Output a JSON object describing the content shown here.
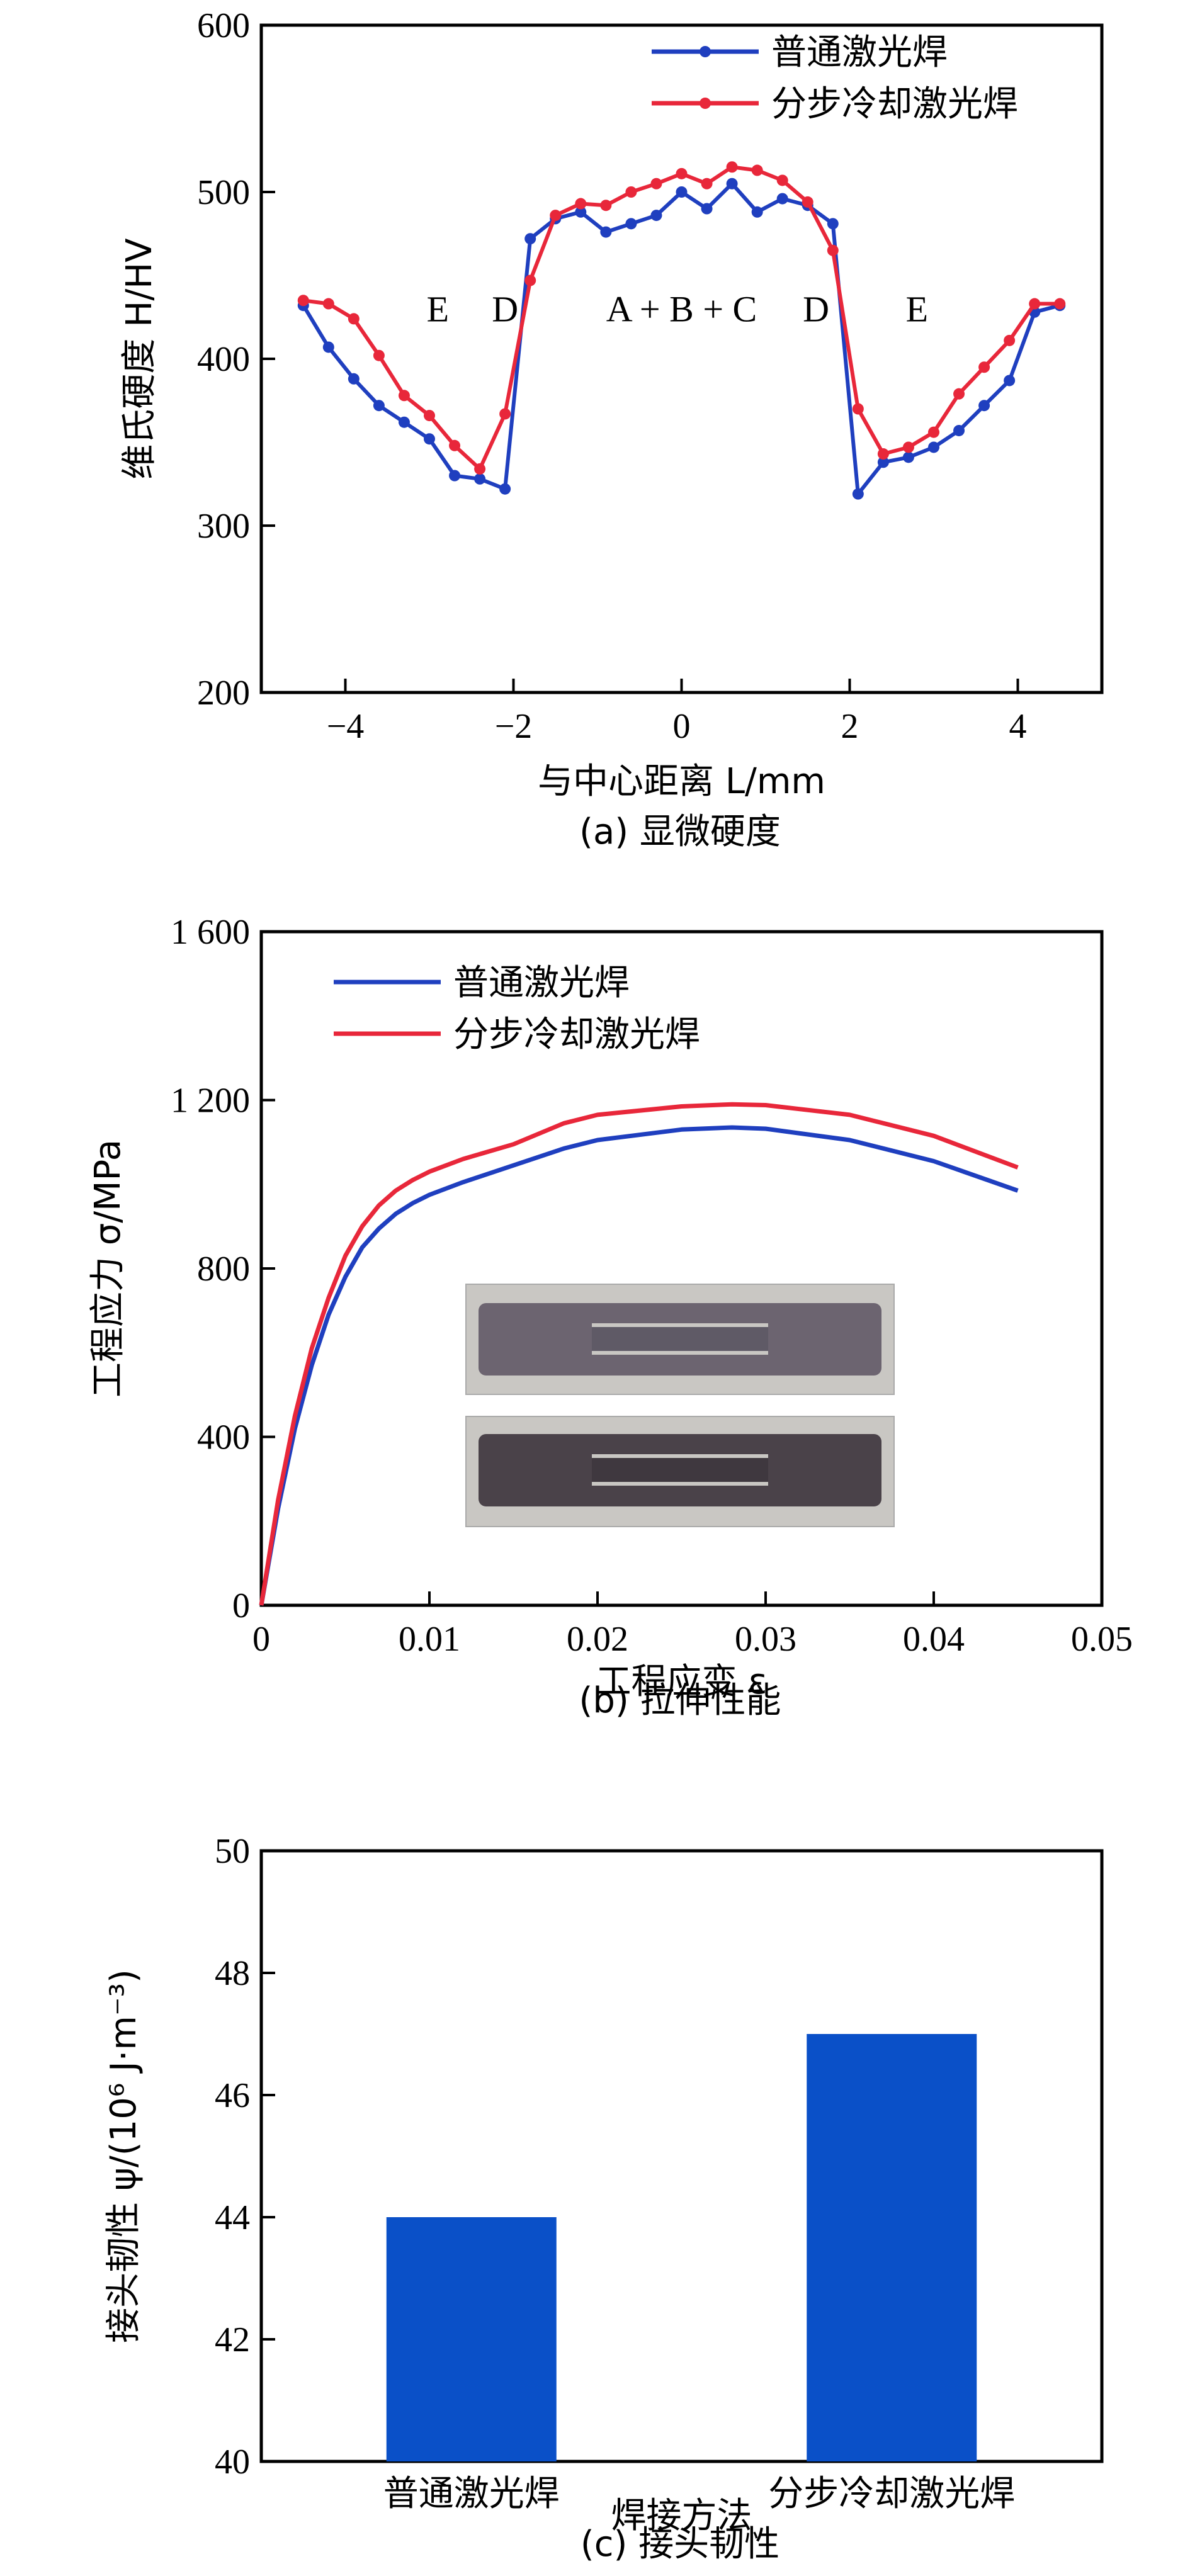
{
  "colors": {
    "blue": "#1f3fbf",
    "red": "#e8273a",
    "bar": "#0a50c8"
  },
  "chart_data": [
    {
      "type": "line",
      "panel": "a",
      "caption": "(a) 显微硬度",
      "xlabel": "与中心距离 L/mm",
      "ylabel": "维氏硬度 H/HV",
      "xlim": [
        -5,
        5
      ],
      "ylim": [
        200,
        600
      ],
      "xticks": [
        -4,
        -2,
        0,
        2,
        4
      ],
      "xtick_labels": [
        "−4",
        "−2",
        "0",
        "2",
        "4"
      ],
      "yticks": [
        200,
        300,
        400,
        500,
        600
      ],
      "ytick_labels": [
        "200",
        "300",
        "400",
        "500",
        "600"
      ],
      "zone_labels": [
        {
          "text": "E",
          "x": -2.9,
          "y": 430
        },
        {
          "text": "D",
          "x": -2.1,
          "y": 430
        },
        {
          "text": "A + B + C",
          "x": 0.0,
          "y": 430
        },
        {
          "text": "D",
          "x": 1.6,
          "y": 430
        },
        {
          "text": "E",
          "x": 2.8,
          "y": 430
        }
      ],
      "series": [
        {
          "name": "普通激光焊",
          "color": "#1f3fbf",
          "x": [
            -4.5,
            -4.2,
            -3.9,
            -3.6,
            -3.3,
            -3.0,
            -2.7,
            -2.4,
            -2.1,
            -1.8,
            -1.5,
            -1.2,
            -0.9,
            -0.6,
            -0.3,
            0.0,
            0.3,
            0.6,
            0.9,
            1.2,
            1.5,
            1.8,
            2.1,
            2.4,
            2.7,
            3.0,
            3.3,
            3.6,
            3.9,
            4.2,
            4.5
          ],
          "y": [
            432,
            407,
            388,
            372,
            362,
            352,
            330,
            328,
            322,
            472,
            484,
            488,
            476,
            481,
            486,
            500,
            490,
            505,
            488,
            496,
            492,
            481,
            319,
            338,
            341,
            347,
            357,
            372,
            387,
            428,
            432
          ]
        },
        {
          "name": "分步冷却激光焊",
          "color": "#e8273a",
          "x": [
            -4.5,
            -4.2,
            -3.9,
            -3.6,
            -3.3,
            -3.0,
            -2.7,
            -2.4,
            -2.1,
            -1.8,
            -1.5,
            -1.2,
            -0.9,
            -0.6,
            -0.3,
            0.0,
            0.3,
            0.6,
            0.9,
            1.2,
            1.5,
            1.8,
            2.1,
            2.4,
            2.7,
            3.0,
            3.3,
            3.6,
            3.9,
            4.2,
            4.5
          ],
          "y": [
            435,
            433,
            424,
            402,
            378,
            366,
            348,
            334,
            367,
            447,
            486,
            493,
            492,
            500,
            505,
            511,
            505,
            515,
            513,
            507,
            494,
            465,
            370,
            343,
            347,
            356,
            379,
            395,
            411,
            433,
            433
          ]
        }
      ]
    },
    {
      "type": "line",
      "panel": "b",
      "caption": "(b) 拉伸性能",
      "xlabel": "工程应变 ε",
      "ylabel": "工程应力 σ/MPa",
      "xlim": [
        0,
        0.05
      ],
      "ylim": [
        0,
        1600
      ],
      "xticks": [
        0,
        0.01,
        0.02,
        0.03,
        0.04,
        0.05
      ],
      "xtick_labels": [
        "0",
        "0.01",
        "0.02",
        "0.03",
        "0.04",
        "0.05"
      ],
      "yticks": [
        0,
        400,
        800,
        1200,
        1600
      ],
      "ytick_labels": [
        "0",
        "400",
        "800",
        "1 200",
        "1 600"
      ],
      "series": [
        {
          "name": "普通激光焊",
          "color": "#1f3fbf",
          "x": [
            0,
            0.001,
            0.002,
            0.003,
            0.004,
            0.005,
            0.006,
            0.007,
            0.008,
            0.009,
            0.01,
            0.012,
            0.015,
            0.018,
            0.02,
            0.025,
            0.028,
            0.03,
            0.035,
            0.04,
            0.045
          ],
          "y": [
            0,
            230,
            420,
            570,
            690,
            780,
            850,
            895,
            930,
            955,
            975,
            1005,
            1045,
            1085,
            1105,
            1130,
            1135,
            1132,
            1105,
            1055,
            985
          ]
        },
        {
          "name": "分步冷却激光焊",
          "color": "#e8273a",
          "x": [
            0,
            0.001,
            0.002,
            0.003,
            0.004,
            0.005,
            0.006,
            0.007,
            0.008,
            0.009,
            0.01,
            0.012,
            0.015,
            0.018,
            0.02,
            0.025,
            0.028,
            0.03,
            0.035,
            0.04,
            0.045
          ],
          "y": [
            0,
            250,
            450,
            610,
            730,
            830,
            900,
            950,
            985,
            1010,
            1030,
            1060,
            1095,
            1145,
            1165,
            1185,
            1190,
            1188,
            1165,
            1115,
            1040
          ]
        }
      ]
    },
    {
      "type": "bar",
      "panel": "c",
      "caption": "(c) 接头韧性",
      "xlabel": "焊接方法",
      "ylabel": "接头韧性 ψ/(10⁶ J·m⁻³)",
      "categories": [
        "普通激光焊",
        "分步冷却激光焊"
      ],
      "values": [
        44,
        47
      ],
      "ylim": [
        40,
        50
      ],
      "yticks": [
        40,
        42,
        44,
        46,
        48,
        50
      ],
      "ytick_labels": [
        "40",
        "42",
        "44",
        "46",
        "48",
        "50"
      ],
      "bar_color": "#0a50c8"
    }
  ]
}
